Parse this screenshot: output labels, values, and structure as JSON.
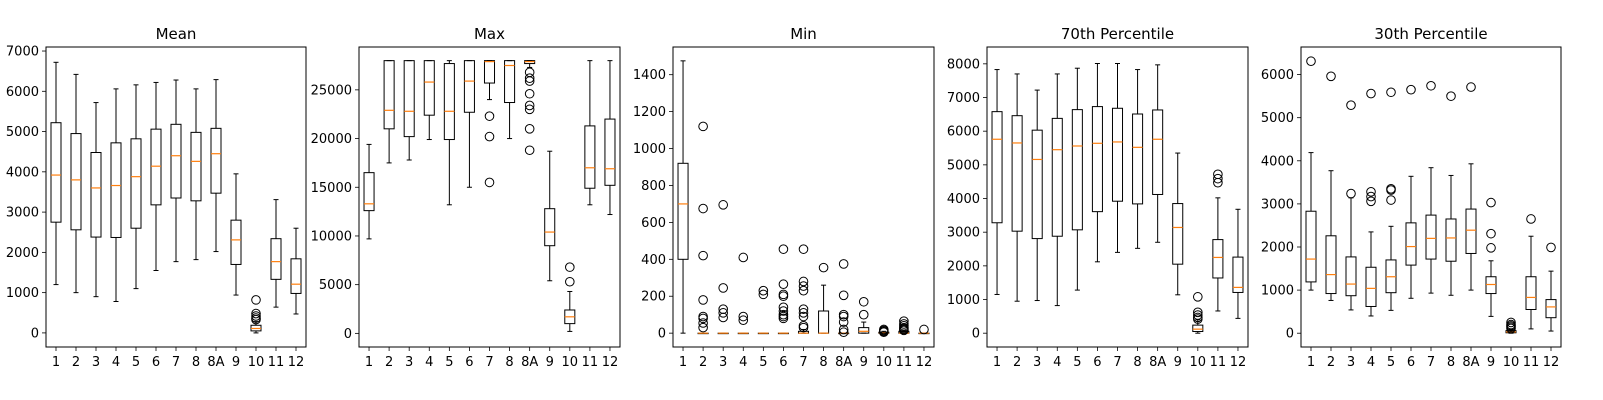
{
  "chart_data": [
    {
      "type": "box",
      "title": "Mean",
      "categories": [
        "1",
        "2",
        "3",
        "4",
        "5",
        "6",
        "7",
        "8",
        "8A",
        "9",
        "10",
        "11",
        "12"
      ],
      "ylim": [
        -350,
        7100
      ],
      "yticks": [
        0,
        1000,
        2000,
        3000,
        4000,
        5000,
        6000,
        7000
      ],
      "boxes": [
        {
          "whislo": 1200,
          "q1": 2750,
          "med": 3920,
          "q3": 5220,
          "whishi": 6720,
          "fliers": []
        },
        {
          "whislo": 1000,
          "q1": 2560,
          "med": 3800,
          "q3": 4950,
          "whishi": 6420,
          "fliers": []
        },
        {
          "whislo": 900,
          "q1": 2380,
          "med": 3600,
          "q3": 4480,
          "whishi": 5720,
          "fliers": []
        },
        {
          "whislo": 780,
          "q1": 2370,
          "med": 3660,
          "q3": 4720,
          "whishi": 6060,
          "fliers": []
        },
        {
          "whislo": 1100,
          "q1": 2600,
          "med": 3880,
          "q3": 4820,
          "whishi": 6160,
          "fliers": []
        },
        {
          "whislo": 1550,
          "q1": 3180,
          "med": 4140,
          "q3": 5060,
          "whishi": 6220,
          "fliers": []
        },
        {
          "whislo": 1770,
          "q1": 3350,
          "med": 4400,
          "q3": 5180,
          "whishi": 6280,
          "fliers": []
        },
        {
          "whislo": 1820,
          "q1": 3280,
          "med": 4260,
          "q3": 4980,
          "whishi": 6060,
          "fliers": []
        },
        {
          "whislo": 2020,
          "q1": 3470,
          "med": 4450,
          "q3": 5080,
          "whishi": 6290,
          "fliers": []
        },
        {
          "whislo": 940,
          "q1": 1700,
          "med": 2310,
          "q3": 2800,
          "whishi": 3950,
          "fliers": []
        },
        {
          "whislo": 0,
          "q1": 50,
          "med": 110,
          "q3": 190,
          "whishi": 280,
          "fliers": [
            820,
            480,
            420,
            370,
            330
          ]
        },
        {
          "whislo": 640,
          "q1": 1330,
          "med": 1770,
          "q3": 2340,
          "whishi": 3310,
          "fliers": []
        },
        {
          "whislo": 470,
          "q1": 980,
          "med": 1210,
          "q3": 1840,
          "whishi": 2600,
          "fliers": []
        }
      ]
    },
    {
      "type": "box",
      "title": "Max",
      "categories": [
        "1",
        "2",
        "3",
        "4",
        "5",
        "6",
        "7",
        "8",
        "8A",
        "9",
        "10",
        "11",
        "12"
      ],
      "ylim": [
        -1400,
        29400
      ],
      "yticks": [
        0,
        5000,
        10000,
        15000,
        20000,
        25000
      ],
      "boxes": [
        {
          "whislo": 9700,
          "q1": 12600,
          "med": 13300,
          "q3": 16500,
          "whishi": 19400,
          "fliers": []
        },
        {
          "whislo": 17500,
          "q1": 21000,
          "med": 22900,
          "q3": 28000,
          "whishi": 28000,
          "fliers": []
        },
        {
          "whislo": 17800,
          "q1": 20200,
          "med": 22800,
          "q3": 28000,
          "whishi": 28000,
          "fliers": []
        },
        {
          "whislo": 19900,
          "q1": 22400,
          "med": 25800,
          "q3": 28000,
          "whishi": 28000,
          "fliers": []
        },
        {
          "whislo": 13200,
          "q1": 19900,
          "med": 22800,
          "q3": 27700,
          "whishi": 28000,
          "fliers": []
        },
        {
          "whislo": 15000,
          "q1": 22700,
          "med": 25900,
          "q3": 28000,
          "whishi": 28000,
          "fliers": []
        },
        {
          "whislo": 24000,
          "q1": 25700,
          "med": 27900,
          "q3": 28000,
          "whishi": 28000,
          "fliers": [
            22300,
            20200,
            15500
          ]
        },
        {
          "whislo": 20000,
          "q1": 23700,
          "med": 27500,
          "q3": 28000,
          "whishi": 28000,
          "fliers": []
        },
        {
          "whislo": 27300,
          "q1": 27700,
          "med": 27900,
          "q3": 28000,
          "whishi": 28000,
          "fliers": [
            26800,
            26200,
            25900,
            24600,
            23400,
            23000,
            21000,
            18800
          ]
        },
        {
          "whislo": 5400,
          "q1": 9000,
          "med": 10400,
          "q3": 12800,
          "whishi": 18700,
          "fliers": []
        },
        {
          "whislo": 200,
          "q1": 1000,
          "med": 1700,
          "q3": 2400,
          "whishi": 4300,
          "fliers": [
            6800,
            5300
          ]
        },
        {
          "whislo": 13200,
          "q1": 14900,
          "med": 17000,
          "q3": 21300,
          "whishi": 28000,
          "fliers": []
        },
        {
          "whislo": 12200,
          "q1": 15200,
          "med": 16900,
          "q3": 22000,
          "whishi": 28000,
          "fliers": []
        }
      ]
    },
    {
      "type": "box",
      "title": "Min",
      "categories": [
        "1",
        "2",
        "3",
        "4",
        "5",
        "6",
        "7",
        "8",
        "8A",
        "9",
        "10",
        "11",
        "12"
      ],
      "ylim": [
        -75,
        1550
      ],
      "yticks": [
        0,
        200,
        400,
        600,
        800,
        1000,
        1200,
        1400
      ],
      "boxes": [
        {
          "whislo": 0,
          "q1": 400,
          "med": 700,
          "q3": 920,
          "whishi": 1475,
          "fliers": []
        },
        {
          "whislo": 0,
          "q1": 0,
          "med": 0,
          "q3": 0,
          "whishi": 0,
          "fliers": [
            1120,
            675,
            420,
            180,
            90,
            80,
            55,
            30
          ]
        },
        {
          "whislo": 0,
          "q1": 0,
          "med": 0,
          "q3": 0,
          "whishi": 0,
          "fliers": [
            695,
            245,
            130,
            110,
            85
          ]
        },
        {
          "whislo": 0,
          "q1": 0,
          "med": 0,
          "q3": 0,
          "whishi": 0,
          "fliers": [
            410,
            90,
            70
          ]
        },
        {
          "whislo": 0,
          "q1": 0,
          "med": 0,
          "q3": 0,
          "whishi": 0,
          "fliers": [
            230,
            210
          ]
        },
        {
          "whislo": 0,
          "q1": 0,
          "med": 0,
          "q3": 0,
          "whishi": 0,
          "fliers": [
            455,
            265,
            210,
            200,
            140,
            120,
            100,
            90,
            80
          ]
        },
        {
          "whislo": 0,
          "q1": 0,
          "med": 0,
          "q3": 10,
          "whishi": 20,
          "fliers": [
            455,
            280,
            255,
            230,
            130,
            110,
            90,
            40,
            30
          ]
        },
        {
          "whislo": 0,
          "q1": 0,
          "med": 0,
          "q3": 120,
          "whishi": 260,
          "fliers": [
            355
          ]
        },
        {
          "whislo": 0,
          "q1": 0,
          "med": 0,
          "q3": 0,
          "whishi": 0,
          "fliers": [
            375,
            205,
            100,
            90,
            60,
            20,
            5
          ]
        },
        {
          "whislo": 0,
          "q1": 0,
          "med": 10,
          "q3": 30,
          "whishi": 60,
          "fliers": [
            170,
            100
          ]
        },
        {
          "whislo": 0,
          "q1": 0,
          "med": 0,
          "q3": 5,
          "whishi": 10,
          "fliers": [
            20,
            15,
            10,
            5
          ]
        },
        {
          "whislo": 0,
          "q1": 0,
          "med": 0,
          "q3": 10,
          "whishi": 15,
          "fliers": [
            65,
            50,
            40,
            30,
            25,
            20,
            15
          ]
        },
        {
          "whislo": 0,
          "q1": 0,
          "med": 0,
          "q3": 0,
          "whishi": 0,
          "fliers": [
            20
          ]
        }
      ]
    },
    {
      "type": "box",
      "title": "70th Percentile",
      "categories": [
        "1",
        "2",
        "3",
        "4",
        "5",
        "6",
        "7",
        "8",
        "8A",
        "9",
        "10",
        "11",
        "12"
      ],
      "ylim": [
        -410,
        8500
      ],
      "yticks": [
        0,
        1000,
        2000,
        3000,
        4000,
        5000,
        6000,
        7000,
        8000
      ],
      "boxes": [
        {
          "whislo": 1150,
          "q1": 3280,
          "med": 5760,
          "q3": 6580,
          "whishi": 7830,
          "fliers": []
        },
        {
          "whislo": 950,
          "q1": 3030,
          "med": 5650,
          "q3": 6460,
          "whishi": 7700,
          "fliers": []
        },
        {
          "whislo": 970,
          "q1": 2810,
          "med": 5160,
          "q3": 6030,
          "whishi": 7220,
          "fliers": []
        },
        {
          "whislo": 820,
          "q1": 2880,
          "med": 5450,
          "q3": 6380,
          "whishi": 7700,
          "fliers": []
        },
        {
          "whislo": 1280,
          "q1": 3070,
          "med": 5560,
          "q3": 6640,
          "whishi": 7870,
          "fliers": []
        },
        {
          "whislo": 2120,
          "q1": 3610,
          "med": 5640,
          "q3": 6730,
          "whishi": 8010,
          "fliers": []
        },
        {
          "whislo": 2400,
          "q1": 3920,
          "med": 5680,
          "q3": 6680,
          "whishi": 8010,
          "fliers": []
        },
        {
          "whislo": 2520,
          "q1": 3840,
          "med": 5520,
          "q3": 6510,
          "whishi": 7830,
          "fliers": []
        },
        {
          "whislo": 2700,
          "q1": 4120,
          "med": 5760,
          "q3": 6630,
          "whishi": 7970,
          "fliers": []
        },
        {
          "whislo": 1140,
          "q1": 2050,
          "med": 3140,
          "q3": 3850,
          "whishi": 5350,
          "fliers": []
        },
        {
          "whislo": 0,
          "q1": 50,
          "med": 120,
          "q3": 240,
          "whishi": 400,
          "fliers": [
            1080,
            620,
            540,
            470,
            420
          ]
        },
        {
          "whislo": 660,
          "q1": 1640,
          "med": 2250,
          "q3": 2780,
          "whishi": 4020,
          "fliers": [
            4720,
            4590,
            4470
          ]
        },
        {
          "whislo": 440,
          "q1": 1210,
          "med": 1360,
          "q3": 2260,
          "whishi": 3680,
          "fliers": []
        }
      ]
    },
    {
      "type": "box",
      "title": "30th Percentile",
      "categories": [
        "1",
        "2",
        "3",
        "4",
        "5",
        "6",
        "7",
        "8",
        "8A",
        "9",
        "10",
        "11",
        "12"
      ],
      "ylim": [
        -320,
        6640
      ],
      "yticks": [
        0,
        1000,
        2000,
        3000,
        4000,
        5000,
        6000
      ],
      "boxes": [
        {
          "whislo": 1000,
          "q1": 1190,
          "med": 1720,
          "q3": 2830,
          "whishi": 4190,
          "fliers": [
            6310
          ]
        },
        {
          "whislo": 760,
          "q1": 920,
          "med": 1360,
          "q3": 2260,
          "whishi": 3770,
          "fliers": [
            5960
          ]
        },
        {
          "whislo": 540,
          "q1": 870,
          "med": 1140,
          "q3": 1770,
          "whishi": 3140,
          "fliers": [
            5290,
            3240
          ]
        },
        {
          "whislo": 400,
          "q1": 620,
          "med": 1040,
          "q3": 1530,
          "whishi": 2350,
          "fliers": [
            5560,
            3280,
            3170,
            3060
          ]
        },
        {
          "whislo": 530,
          "q1": 940,
          "med": 1310,
          "q3": 1700,
          "whishi": 2480,
          "fliers": [
            5590,
            3350,
            3320,
            3090
          ]
        },
        {
          "whislo": 810,
          "q1": 1580,
          "med": 2010,
          "q3": 2560,
          "whishi": 3640,
          "fliers": [
            5650
          ]
        },
        {
          "whislo": 930,
          "q1": 1720,
          "med": 2200,
          "q3": 2740,
          "whishi": 3840,
          "fliers": [
            5740
          ]
        },
        {
          "whislo": 880,
          "q1": 1670,
          "med": 2210,
          "q3": 2650,
          "whishi": 3660,
          "fliers": [
            5500
          ]
        },
        {
          "whislo": 1000,
          "q1": 1850,
          "med": 2390,
          "q3": 2880,
          "whishi": 3930,
          "fliers": [
            5710
          ]
        },
        {
          "whislo": 390,
          "q1": 920,
          "med": 1130,
          "q3": 1310,
          "whishi": 1680,
          "fliers": [
            3030,
            2310,
            1980
          ]
        },
        {
          "whislo": 0,
          "q1": 10,
          "med": 30,
          "q3": 60,
          "whishi": 90,
          "fliers": [
            250,
            200,
            170,
            140,
            110
          ]
        },
        {
          "whislo": 100,
          "q1": 550,
          "med": 830,
          "q3": 1310,
          "whishi": 2250,
          "fliers": [
            2650
          ]
        },
        {
          "whislo": 50,
          "q1": 360,
          "med": 610,
          "q3": 780,
          "whishi": 1440,
          "fliers": [
            1990
          ]
        }
      ]
    }
  ]
}
